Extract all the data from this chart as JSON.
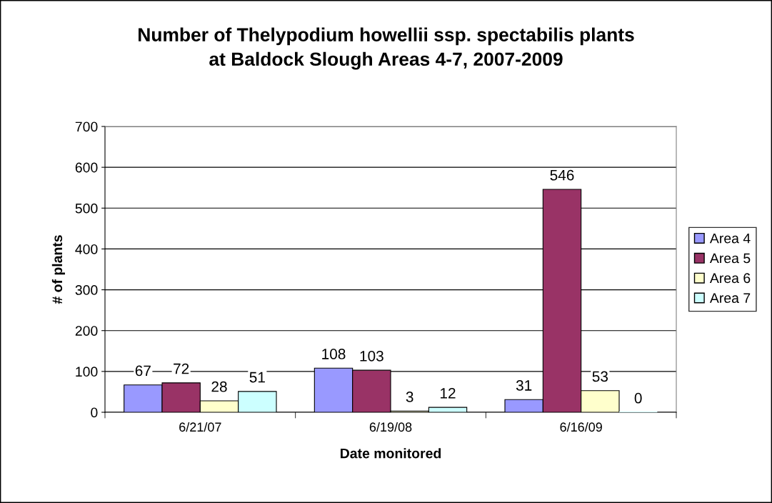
{
  "chart_data": {
    "type": "bar",
    "title": "Number of Thelypodium howellii ssp. spectabilis plants\nat Baldock Slough Areas 4-7, 2007-2009",
    "xlabel": "Date monitored",
    "ylabel": "# of plants",
    "categories": [
      "6/21/07",
      "6/19/08",
      "6/16/09"
    ],
    "series": [
      {
        "name": "Area 4",
        "color": "#9999ff",
        "values": [
          67,
          108,
          31
        ]
      },
      {
        "name": "Area 5",
        "color": "#993366",
        "values": [
          72,
          103,
          546
        ]
      },
      {
        "name": "Area 6",
        "color": "#ffffcc",
        "values": [
          28,
          3,
          53
        ]
      },
      {
        "name": "Area 7",
        "color": "#ccffff",
        "values": [
          51,
          12,
          0
        ]
      }
    ],
    "ylim": [
      0,
      700
    ],
    "yticks": [
      0,
      100,
      200,
      300,
      400,
      500,
      600,
      700
    ],
    "grid": "y",
    "legend": "right",
    "data_labels": true
  }
}
